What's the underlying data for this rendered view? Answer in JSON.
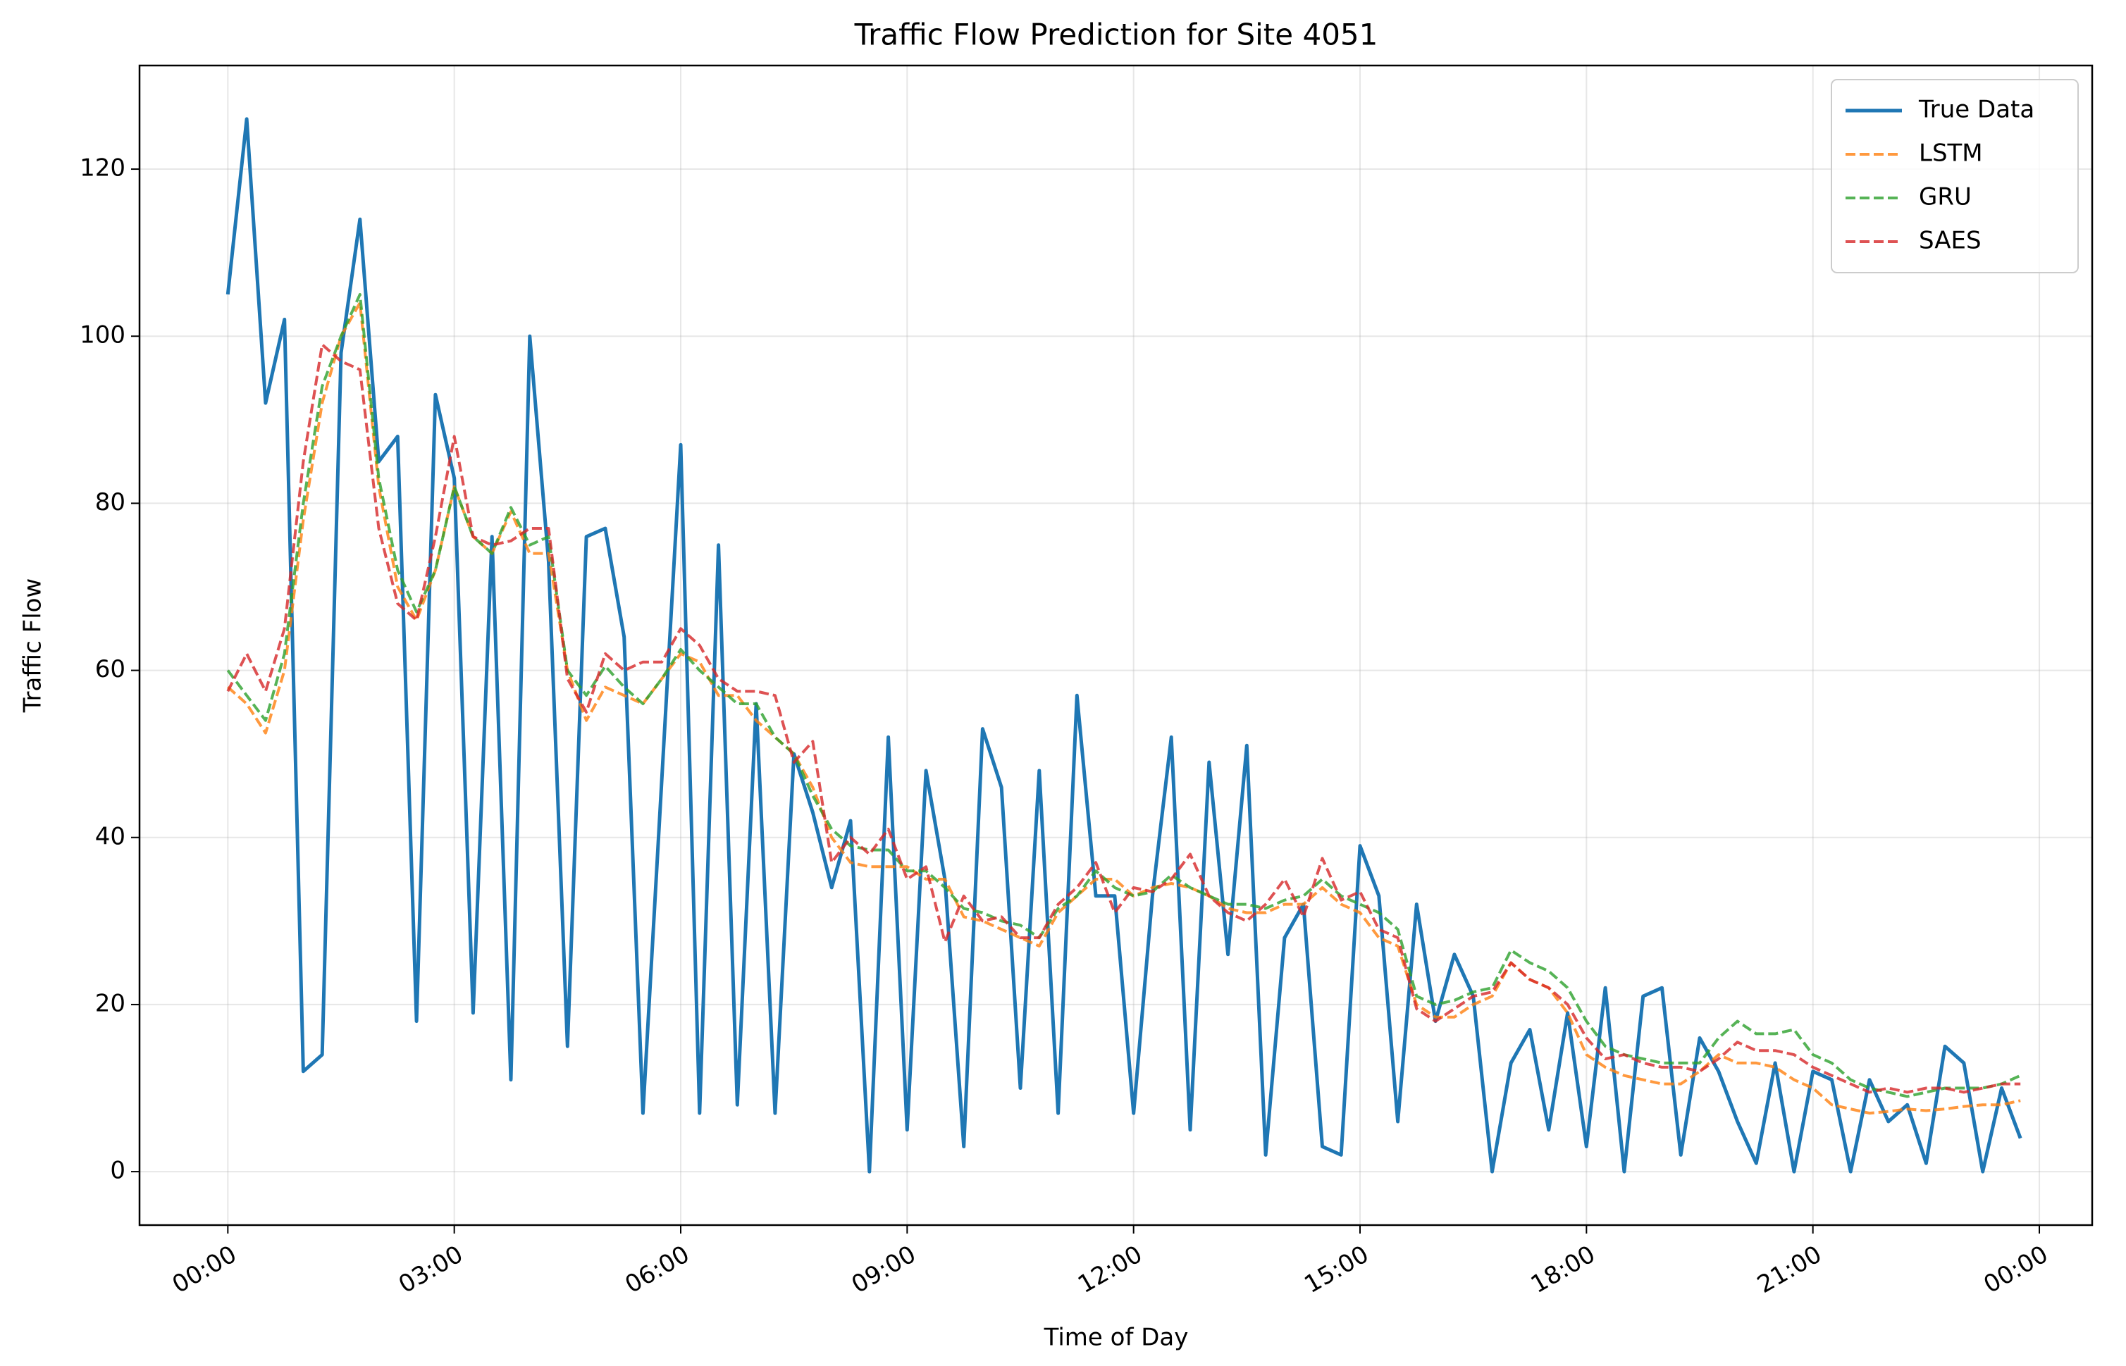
{
  "chart_data": {
    "type": "line",
    "title": "Traffic Flow Prediction for Site 4051",
    "xlabel": "Time of Day",
    "ylabel": "Traffic Flow",
    "x": [
      0,
      0.25,
      0.5,
      0.75,
      1,
      1.25,
      1.5,
      1.75,
      2,
      2.25,
      2.5,
      2.75,
      3,
      3.25,
      3.5,
      3.75,
      4,
      4.25,
      4.5,
      4.75,
      5,
      5.25,
      5.5,
      5.75,
      6,
      6.25,
      6.5,
      6.75,
      7,
      7.25,
      7.5,
      7.75,
      8,
      8.25,
      8.5,
      8.75,
      9,
      9.25,
      9.5,
      9.75,
      10,
      10.25,
      10.5,
      10.75,
      11,
      11.25,
      11.5,
      11.75,
      12,
      12.25,
      12.5,
      12.75,
      13,
      13.25,
      13.5,
      13.75,
      14,
      14.25,
      14.5,
      14.75,
      15,
      15.25,
      15.5,
      15.75,
      16,
      16.25,
      16.5,
      16.75,
      17,
      17.25,
      17.5,
      17.75,
      18,
      18.25,
      18.5,
      18.75,
      19,
      19.25,
      19.5,
      19.75,
      20,
      20.25,
      20.5,
      20.75,
      21,
      21.25,
      21.5,
      21.75,
      22,
      22.25,
      22.5,
      22.75,
      23,
      23.25,
      23.5,
      23.75
    ],
    "series": [
      {
        "name": "True Data",
        "color": "#1f77b4",
        "style": "solid",
        "values": [
          105,
          126,
          92,
          102,
          12,
          14,
          98,
          114,
          85,
          88,
          18,
          93,
          83,
          19,
          76,
          11,
          100,
          73,
          15,
          76,
          77,
          64,
          7,
          47,
          87,
          7,
          75,
          8,
          56,
          7,
          50,
          43,
          34,
          42,
          0,
          52,
          5,
          48,
          35,
          3,
          53,
          46,
          10,
          48,
          7,
          57,
          33,
          33,
          7,
          33,
          52,
          5,
          49,
          26,
          51,
          2,
          28,
          32,
          3,
          2,
          39,
          33,
          6,
          32,
          18,
          26,
          21,
          0,
          13,
          17,
          5,
          19,
          3,
          22,
          0,
          21,
          22,
          2,
          16,
          12,
          6,
          1,
          13,
          0,
          12,
          11,
          0,
          11,
          6,
          8,
          1,
          15,
          13,
          0,
          10,
          4
        ]
      },
      {
        "name": "LSTM",
        "color": "#ff7f0e",
        "style": "dashed",
        "values": [
          58,
          56,
          52.5,
          60,
          78,
          92,
          100,
          104,
          82,
          70,
          66,
          72,
          82,
          76,
          74,
          79,
          74,
          74,
          60,
          54,
          58,
          57,
          56,
          59,
          62,
          61,
          57,
          57,
          54,
          52,
          50,
          46,
          40,
          37,
          36.5,
          36.5,
          36.5,
          35,
          35,
          30.5,
          30,
          29,
          28,
          27,
          31,
          33,
          35,
          35,
          33,
          34,
          34.5,
          34,
          33,
          31.5,
          31,
          31,
          32,
          32,
          34,
          32,
          31,
          28,
          27,
          20,
          18.5,
          18.5,
          20,
          21,
          25,
          23,
          22,
          19,
          14,
          12.5,
          11.5,
          11,
          10.5,
          10.5,
          12,
          14,
          13,
          13,
          12.5,
          11,
          10,
          8,
          7.5,
          7,
          7.2,
          7.5,
          7.3,
          7.5,
          7.8,
          8,
          8,
          8.5
        ]
      },
      {
        "name": "GRU",
        "color": "#2ca02c",
        "style": "dashed",
        "values": [
          60,
          57,
          54,
          62,
          80,
          94,
          100,
          105,
          83,
          72,
          67,
          72,
          82,
          76,
          74,
          79.5,
          75,
          76,
          60,
          57,
          60.5,
          58,
          56,
          59,
          62.5,
          60,
          58,
          56,
          56,
          52,
          50,
          45,
          41,
          39,
          38.5,
          38.5,
          36,
          36,
          34,
          31.5,
          31,
          30,
          29.5,
          28,
          31.5,
          33,
          36,
          34,
          33,
          33.5,
          35.5,
          34,
          33,
          32,
          32,
          31.5,
          32.5,
          33,
          35,
          33,
          32,
          31,
          29,
          21,
          20,
          20.5,
          21.5,
          22,
          26.5,
          25,
          24,
          22,
          18,
          15,
          14,
          13.5,
          13,
          13,
          13,
          16,
          18,
          16.5,
          16.5,
          17,
          14,
          13,
          11,
          10,
          9.5,
          9,
          9.5,
          10,
          10,
          10,
          10.5,
          11.5
        ]
      },
      {
        "name": "SAES",
        "color": "#d62728",
        "style": "dashed",
        "values": [
          57.5,
          62,
          57.5,
          65,
          85,
          99,
          97,
          96,
          77,
          68,
          66,
          76,
          88,
          76,
          75,
          75.5,
          77,
          77,
          59,
          55,
          62,
          60,
          61,
          61,
          65,
          63,
          59,
          57.5,
          57.5,
          57,
          49,
          51.5,
          37,
          40,
          38,
          41,
          35,
          36.5,
          27.5,
          33,
          30,
          30.5,
          28,
          28,
          32,
          34,
          37,
          31,
          34,
          33.5,
          35,
          38,
          33,
          31,
          30,
          32,
          35,
          30.5,
          37.5,
          32.5,
          33.5,
          29,
          28,
          19.5,
          18,
          19.5,
          21,
          21.5,
          25,
          23,
          22,
          20,
          16,
          13.5,
          14,
          13,
          12.5,
          12.5,
          12,
          13.5,
          15.5,
          14.5,
          14.5,
          14,
          12.5,
          11.5,
          10.5,
          9.5,
          10,
          9.5,
          10,
          10,
          9.5,
          10,
          10.5,
          10.5
        ]
      }
    ],
    "xlim": [
      -1.17,
      24.7
    ],
    "ylim": [
      -6.4,
      132.4
    ],
    "xticks": [
      {
        "value": 0,
        "label": "00:00"
      },
      {
        "value": 3,
        "label": "03:00"
      },
      {
        "value": 6,
        "label": "06:00"
      },
      {
        "value": 9,
        "label": "09:00"
      },
      {
        "value": 12,
        "label": "12:00"
      },
      {
        "value": 15,
        "label": "15:00"
      },
      {
        "value": 18,
        "label": "18:00"
      },
      {
        "value": 21,
        "label": "21:00"
      },
      {
        "value": 24,
        "label": "00:00"
      }
    ],
    "yticks": [
      0,
      20,
      40,
      60,
      80,
      100,
      120
    ],
    "grid": true,
    "legend": "upper right"
  }
}
